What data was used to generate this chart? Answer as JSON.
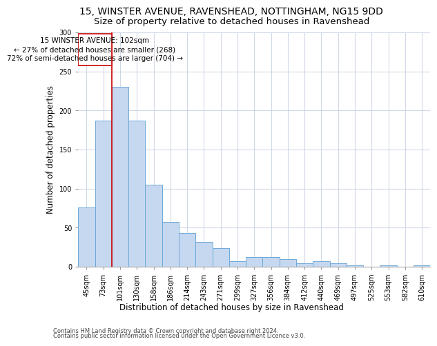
{
  "title_line1": "15, WINSTER AVENUE, RAVENSHEAD, NOTTINGHAM, NG15 9DD",
  "title_line2": "Size of property relative to detached houses in Ravenshead",
  "xlabel": "Distribution of detached houses by size in Ravenshead",
  "ylabel": "Number of detached properties",
  "footnote1": "Contains HM Land Registry data © Crown copyright and database right 2024.",
  "footnote2": "Contains public sector information licensed under the Open Government Licence v3.0.",
  "categories": [
    "45sqm",
    "73sqm",
    "101sqm",
    "130sqm",
    "158sqm",
    "186sqm",
    "214sqm",
    "243sqm",
    "271sqm",
    "299sqm",
    "327sqm",
    "356sqm",
    "384sqm",
    "412sqm",
    "440sqm",
    "469sqm",
    "497sqm",
    "525sqm",
    "553sqm",
    "582sqm",
    "610sqm"
  ],
  "values": [
    76,
    187,
    230,
    187,
    105,
    57,
    43,
    32,
    24,
    7,
    12,
    12,
    10,
    4,
    7,
    4,
    2,
    0,
    2,
    0,
    2
  ],
  "bar_color": "#c5d8f0",
  "bar_edge_color": "#6fa8d8",
  "grid_color": "#d0d8e8",
  "annotation_box_color": "#cc0000",
  "property_line_color": "#cc0000",
  "annotation_text_line1": "15 WINSTER AVENUE: 102sqm",
  "annotation_text_line2": "← 27% of detached houses are smaller (268)",
  "annotation_text_line3": "72% of semi-detached houses are larger (704) →",
  "ylim": [
    0,
    300
  ],
  "yticks": [
    0,
    50,
    100,
    150,
    200,
    250,
    300
  ],
  "bg_color": "#ffffff",
  "title_fontsize": 10,
  "subtitle_fontsize": 9.5,
  "axis_label_fontsize": 8.5,
  "tick_fontsize": 7,
  "annotation_fontsize": 7.5,
  "footnote_fontsize": 6
}
